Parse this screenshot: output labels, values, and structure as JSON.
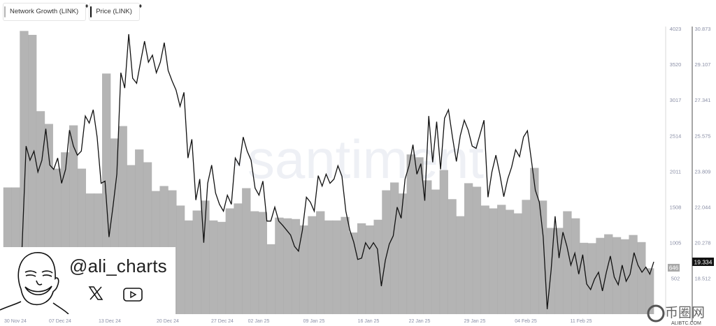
{
  "legend": [
    {
      "label": "Network Growth (LINK)",
      "color": "#b4b4b4"
    },
    {
      "label": "Price (LINK)",
      "color": "#111111"
    }
  ],
  "watermark": "·santiment",
  "brand": {
    "handle": "@ali_charts",
    "icons": [
      "x-logo-icon",
      "youtube-icon"
    ]
  },
  "site_logo": {
    "chars": "币圈网",
    "domain": "ALIBTC.COM"
  },
  "chart_data": {
    "type": "bar+line",
    "x_ticks": [
      "30 Nov 24",
      "07 Dec 24",
      "13 Dec 24",
      "20 Dec 24",
      "27 Dec 24",
      "02 Jan 25",
      "09 Jan 25",
      "16 Jan 25",
      "22 Jan 25",
      "29 Jan 25",
      "04 Feb 25",
      "11 Feb 25"
    ],
    "left_axis": {
      "ticks": [
        "4023",
        "3520",
        "3017",
        "2514",
        "2011",
        "1508",
        "1005",
        "502"
      ],
      "range": [
        0,
        4023
      ]
    },
    "right_axis": {
      "ticks": [
        "30.873",
        "29.107",
        "27.341",
        "25.575",
        "23.809",
        "22.044",
        "20.278",
        "18.512"
      ],
      "range": [
        16.746,
        30.873
      ]
    },
    "grid": false,
    "series": [
      {
        "name": "Network Growth (LINK)",
        "type": "bar",
        "color": "#b4b4b4",
        "last_value": "646",
        "values": [
          1785,
          1785,
          3990,
          3935,
          2860,
          2680,
          2050,
          2280,
          2660,
          2050,
          1700,
          1700,
          3390,
          2475,
          2650,
          2100,
          2320,
          2140,
          1735,
          1805,
          1745,
          1530,
          1320,
          1460,
          1600,
          1320,
          1300,
          1490,
          1560,
          1775,
          1450,
          1440,
          985,
          1360,
          1350,
          1340,
          1250,
          1380,
          1450,
          1320,
          1320,
          1370,
          1150,
          1280,
          1250,
          1330,
          1745,
          1855,
          1700,
          2250,
          2210,
          1885,
          1755,
          2030,
          1620,
          1380,
          1845,
          1795,
          1530,
          1490,
          1540,
          1470,
          1420,
          1610,
          2060,
          1600,
          1215,
          1215,
          1450,
          1350,
          1005,
          1000,
          1075,
          1125,
          1085,
          1055,
          1115,
          1015,
          646
        ]
      },
      {
        "name": "Price (LINK)",
        "type": "line",
        "color": "#111111",
        "last_value": "19.334",
        "values": [
          17.2,
          20.1,
          25.06,
          24.36,
          24.81,
          23.78,
          24.36,
          25.92,
          24.12,
          23.91,
          24.47,
          23.22,
          23.91,
          25.85,
          25.06,
          24.61,
          24.81,
          26.55,
          26.2,
          26.86,
          25.51,
          23.22,
          23.33,
          20.56,
          22.04,
          23.67,
          28.69,
          27.93,
          30.6,
          28.42,
          28.17,
          29.21,
          30.25,
          29.21,
          29.56,
          28.69,
          29.21,
          30.18,
          28.8,
          28.28,
          27.83,
          27.03,
          27.72,
          24.47,
          25.4,
          22.39,
          23.43,
          20.28,
          23.22,
          24.12,
          22.74,
          22.18,
          21.84,
          22.63,
          22.18,
          24.47,
          24.12,
          25.51,
          24.81,
          24.36,
          22.98,
          22.63,
          23.33,
          21.35,
          21.35,
          22.04,
          21.35,
          21.14,
          20.9,
          20.66,
          20.1,
          19.86,
          20.9,
          22.53,
          22.29,
          21.84,
          23.6,
          23.08,
          23.67,
          23.22,
          23.43,
          24.09,
          23.57,
          21.84,
          20.9,
          20.31,
          19.45,
          19.52,
          20.28,
          19.97,
          20.28,
          19.97,
          18.13,
          19.41,
          20.21,
          20.62,
          22.04,
          21.49,
          23.43,
          24.09,
          25.13,
          23.67,
          24.19,
          22.36,
          26.55,
          24.26,
          26.27,
          23.91,
          26.44,
          26.86,
          25.51,
          24.3,
          25.58,
          26.34,
          25.85,
          25.06,
          24.95,
          25.65,
          26.34,
          22.53,
          23.78,
          24.61,
          23.67,
          22.56,
          23.43,
          24.02,
          24.88,
          24.54,
          25.51,
          25.82,
          24.36,
          22.88,
          22.29,
          20.56,
          16.99,
          18.93,
          21.59,
          19.52,
          20.8,
          20.1,
          19.17,
          19.76,
          18.72,
          19.69,
          18.24,
          17.96,
          18.48,
          18.82,
          17.89,
          18.82,
          19.62,
          18.58,
          18.2,
          19.17,
          18.37,
          18.72,
          19.79,
          19.17,
          18.82,
          19.07,
          18.72,
          19.334
        ]
      }
    ]
  }
}
